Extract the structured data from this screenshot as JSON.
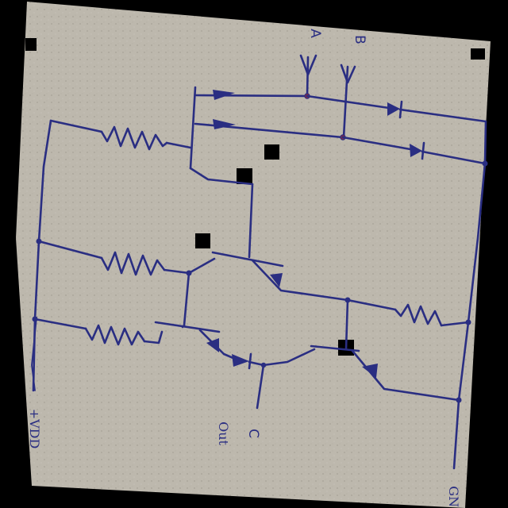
{
  "labels": {
    "input_a": "A",
    "input_b": "B",
    "supply": "+VDD",
    "output": "C",
    "output_sub": "Out",
    "ground": "GND"
  },
  "colors": {
    "paper": "#bdb8ad",
    "paper_edge": "#aaa69b",
    "ink": "#2a2e82",
    "junction_red": "#7a2a4a",
    "background": "#000000"
  }
}
